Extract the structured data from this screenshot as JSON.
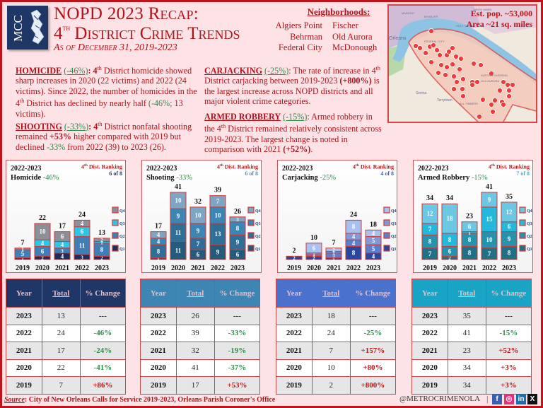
{
  "header": {
    "logo_text": "MCC",
    "title_line1": "NOPD 2023 Recap:",
    "title_line2_num": "4",
    "title_line2_sup": "th",
    "title_line2_rest": " District Crime Trends",
    "subtitle": "As of December 31, 2019-2023"
  },
  "neighborhoods": {
    "title": "Neighborhoods:",
    "left": [
      "Algiers Point",
      "Behrman",
      "Federal City"
    ],
    "right": [
      "Fischer",
      "Old Aurora",
      "McDonough"
    ]
  },
  "map": {
    "population": "Est. pop. ~53,000",
    "area": "Area ~21 sq. miles",
    "labels": [
      "MARIGNY",
      "BYWATER",
      "HOLY CROSS",
      "FEDERAL CITY",
      "AURORA GARDENS",
      "OLD AURORA",
      "Orleans",
      "Gretna",
      "Terrytown",
      "ALL TIMBERS",
      "NINTH WARD"
    ]
  },
  "summaries": {
    "homicide": {
      "head": "HOMICIDE",
      "pct": "(-46%)",
      "text_a": ": 4",
      "sup": "th",
      "text_b": " District homicide showed sharp increases in 2020 (22 victims) and 2022 (24 victims).  Since 2022, the number of homicides in the 4",
      "sup2": "th",
      "text_c": " District has declined by nearly half ",
      "pct2": "(-46%;",
      "text_d": " 13 victims)."
    },
    "shooting": {
      "head": "SHOOTING",
      "pct": "(-33%)",
      "text_a": ": 4",
      "sup": "th",
      "text_b": " District nonfatal shooting remained ",
      "bold1": "+53%",
      "text_c": " higher compared with 2019 but declined ",
      "pct2": "-33%",
      "text_d": " from 2022 (39) to 2023 (26)."
    },
    "carjacking": {
      "head": "CARJACKING",
      "pct": "(-25%)",
      "text_a": ": The rate of increase in 4",
      "sup": "th",
      "text_b": " District carjacking between 2019-2023 ",
      "bold1": "(+800%)",
      "text_c": " is the largest increase across NOPD districts and all major violent crime categories."
    },
    "armed_robbery": {
      "head": "ARMED ROBBERY",
      "pct": "(-15%)",
      "text_a": ": Armed robbery in the 4",
      "sup": "th",
      "text_b": " District remained relatively consistent across 2019-2023.  The largest change is noted in comparison with 2021 ",
      "bold1": "(+52%)",
      "text_c": "."
    }
  },
  "chart_data": [
    {
      "type": "bar",
      "stacked": true,
      "title": "Homicide",
      "period": "2022-2023",
      "change": "-46%",
      "rank_label_a": "4",
      "rank_label_sup": "th",
      "rank_label_b": " Dist. Ranking",
      "rank": "6 of 8",
      "rank_color": "#1e3766",
      "categories": [
        "2019",
        "2020",
        "2021",
        "2022",
        "2023"
      ],
      "totals": [
        7,
        22,
        17,
        24,
        13
      ],
      "series": [
        {
          "name": "Q1",
          "color": "#1b2f5e",
          "values": [
            1,
            2,
            4,
            3,
            2
          ]
        },
        {
          "name": "Q2",
          "color": "#3d7fb6",
          "values": [
            5,
            6,
            3,
            11,
            8
          ]
        },
        {
          "name": "Q3",
          "color": "#2ec6e6",
          "values": [
            0,
            4,
            4,
            6,
            1
          ]
        },
        {
          "name": "Q4",
          "color": "#8c8f98",
          "values": [
            1,
            10,
            6,
            4,
            2
          ]
        }
      ],
      "legend": [
        "Q4",
        "Q3",
        "Q2",
        "Q1"
      ],
      "legend_position": "right"
    },
    {
      "type": "bar",
      "stacked": true,
      "title": "Shooting",
      "period": "2022-2023",
      "change": "-33%",
      "rank_label_a": "4",
      "rank_label_sup": "th",
      "rank_label_b": " Dist. Ranking",
      "rank": "6 of 8",
      "rank_color": "#4a90c2",
      "categories": [
        "2019",
        "2020",
        "2021",
        "2022",
        "2023"
      ],
      "totals": [
        17,
        41,
        32,
        39,
        26
      ],
      "series": [
        {
          "name": "Q1",
          "color": "#245a7c",
          "values": [
            1,
            11,
            6,
            9,
            6
          ]
        },
        {
          "name": "Q2",
          "color": "#2f6f97",
          "values": [
            8,
            11,
            7,
            13,
            9
          ]
        },
        {
          "name": "Q3",
          "color": "#3b86b4",
          "values": [
            4,
            9,
            9,
            10,
            8
          ]
        },
        {
          "name": "Q4",
          "color": "#7ea5c4",
          "values": [
            4,
            10,
            10,
            7,
            3
          ]
        }
      ],
      "legend": [
        "Q4",
        "Q3",
        "Q2",
        "Q1"
      ],
      "legend_position": "right"
    },
    {
      "type": "bar",
      "stacked": true,
      "title": "Carjacking",
      "period": "2022-2023",
      "change": "-25%",
      "rank_label_a": "4",
      "rank_label_sup": "th",
      "rank_label_b": " Dist. Ranking",
      "rank": "4 of 8",
      "rank_color": "#3a62c4",
      "categories": [
        "2019",
        "2020",
        "2021",
        "2022",
        "2023"
      ],
      "totals": [
        2,
        10,
        7,
        24,
        18
      ],
      "series": [
        {
          "name": "Q1",
          "color": "#2848a0",
          "values": [
            2,
            2,
            1,
            8,
            4
          ]
        },
        {
          "name": "Q2",
          "color": "#5a7fcc",
          "values": [
            0,
            1,
            3,
            4,
            5
          ]
        },
        {
          "name": "Q3",
          "color": "#7f9ad6",
          "values": [
            0,
            1,
            1,
            4,
            5
          ]
        },
        {
          "name": "Q4",
          "color": "#a8c1ef",
          "values": [
            0,
            6,
            2,
            8,
            4
          ]
        }
      ],
      "legend": [
        "Q4",
        "Q3",
        "Q2",
        "Q1"
      ],
      "legend_position": "right"
    },
    {
      "type": "bar",
      "stacked": true,
      "title": "Armed Robbery",
      "period": "2022-2023",
      "change": "-15%",
      "rank_label_a": "4",
      "rank_label_sup": "th",
      "rank_label_b": " Dist. Ranking",
      "rank": "7 of 8",
      "rank_color": "#2eb6d6",
      "categories": [
        "2019",
        "2020",
        "2021",
        "2022",
        "2023"
      ],
      "totals": [
        34,
        34,
        23,
        41,
        35
      ],
      "series": [
        {
          "name": "Q1",
          "color": "#1f7186",
          "values": [
            7,
            2,
            8,
            7,
            8
          ]
        },
        {
          "name": "Q2",
          "color": "#2693ad",
          "values": [
            8,
            6,
            8,
            10,
            9
          ]
        },
        {
          "name": "Q3",
          "color": "#22b9dc",
          "values": [
            7,
            8,
            1,
            15,
            6
          ]
        },
        {
          "name": "Q4",
          "color": "#6bc8e4",
          "values": [
            12,
            18,
            6,
            9,
            12
          ]
        }
      ],
      "legend": [
        "Q4",
        "Q3",
        "Q2",
        "Q1"
      ],
      "legend_position": "right"
    }
  ],
  "tables": [
    {
      "header_bg": "#1e3766",
      "headers": [
        "Year",
        "Total",
        "% Change"
      ],
      "rows": [
        {
          "year": "2023",
          "total": "13",
          "change": "---",
          "dir": "neu"
        },
        {
          "year": "2022",
          "total": "24",
          "change": "-46%",
          "dir": "neg"
        },
        {
          "year": "2021",
          "total": "17",
          "change": "-24%",
          "dir": "neg"
        },
        {
          "year": "2020",
          "total": "22",
          "change": "-41%",
          "dir": "neg"
        },
        {
          "year": "2019",
          "total": "7",
          "change": "+86%",
          "dir": "pos"
        }
      ]
    },
    {
      "header_bg": "#3d86b4",
      "headers": [
        "Year",
        "Total",
        "% Change"
      ],
      "rows": [
        {
          "year": "2023",
          "total": "26",
          "change": "---",
          "dir": "neu"
        },
        {
          "year": "2022",
          "total": "39",
          "change": "-33%",
          "dir": "neg"
        },
        {
          "year": "2021",
          "total": "32",
          "change": "-19%",
          "dir": "neg"
        },
        {
          "year": "2020",
          "total": "41",
          "change": "-37%",
          "dir": "neg"
        },
        {
          "year": "2019",
          "total": "17",
          "change": "+53%",
          "dir": "pos"
        }
      ]
    },
    {
      "header_bg": "#4a72cc",
      "headers": [
        "Year",
        "Total",
        "% Change"
      ],
      "rows": [
        {
          "year": "2023",
          "total": "18",
          "change": "---",
          "dir": "neu"
        },
        {
          "year": "2022",
          "total": "24",
          "change": "-25%",
          "dir": "neg"
        },
        {
          "year": "2021",
          "total": "7",
          "change": "+157%",
          "dir": "pos"
        },
        {
          "year": "2020",
          "total": "10",
          "change": "+80%",
          "dir": "pos"
        },
        {
          "year": "2019",
          "total": "2",
          "change": "+800%",
          "dir": "pos"
        }
      ]
    },
    {
      "header_bg": "#19a4c6",
      "headers": [
        "Year",
        "Total",
        "% Change"
      ],
      "rows": [
        {
          "year": "2023",
          "total": "35",
          "change": "---",
          "dir": "neu"
        },
        {
          "year": "2022",
          "total": "41",
          "change": "-15%",
          "dir": "neg"
        },
        {
          "year": "2021",
          "total": "23",
          "change": "+52%",
          "dir": "pos"
        },
        {
          "year": "2020",
          "total": "34",
          "change": "+3%",
          "dir": "pos"
        },
        {
          "year": "2019",
          "total": "34",
          "change": "+3%",
          "dir": "pos"
        }
      ]
    }
  ],
  "footer": {
    "source_label": "Source",
    "source_text": ": City of New Orleans Calls for Service 2019-2023, Orleans Parish Coroner's Office",
    "handle": "@METROCRIMENOLA",
    "separator": "|",
    "social": [
      {
        "name": "facebook",
        "glyph": "f"
      },
      {
        "name": "instagram",
        "glyph": "◎"
      },
      {
        "name": "linkedin",
        "glyph": "in"
      },
      {
        "name": "x",
        "glyph": "X"
      }
    ]
  },
  "colors": {
    "accent_red": "#b3121a",
    "green": "#2e8b4a",
    "background": "#fde3e6"
  }
}
